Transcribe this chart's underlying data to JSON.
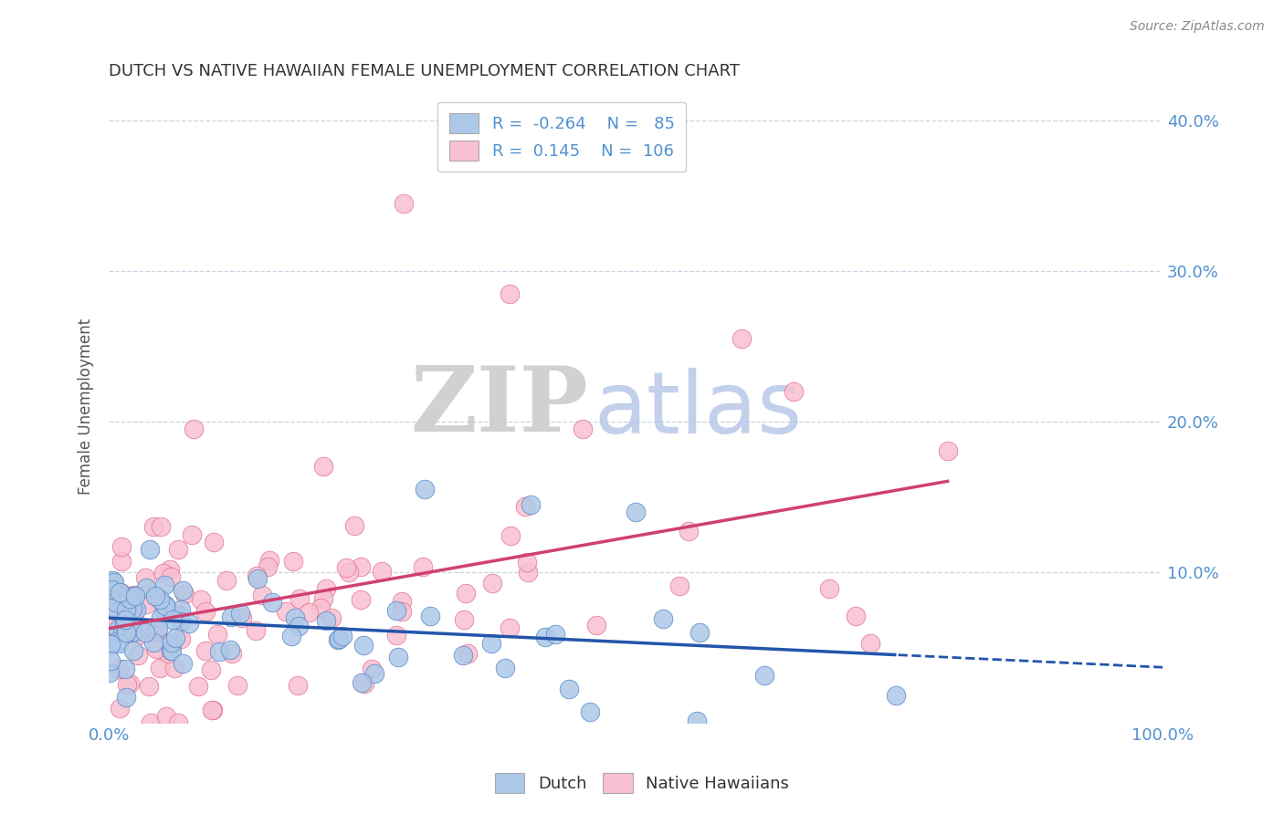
{
  "title": "DUTCH VS NATIVE HAWAIIAN FEMALE UNEMPLOYMENT CORRELATION CHART",
  "source": "Source: ZipAtlas.com",
  "xlabel": "",
  "ylabel": "Female Unemployment",
  "xlim": [
    0,
    1.0
  ],
  "ylim": [
    0,
    0.42
  ],
  "ytick_labels": [
    "",
    "10.0%",
    "20.0%",
    "30.0%",
    "40.0%"
  ],
  "ytick_vals": [
    0.0,
    0.1,
    0.2,
    0.3,
    0.4
  ],
  "dutch_R": -0.264,
  "dutch_N": 85,
  "dutch_color": "#adc8e8",
  "dutch_edge_color": "#5585c5",
  "dutch_line_color": "#2255aa",
  "native_R": 0.145,
  "native_N": 106,
  "native_color": "#f8c0d0",
  "native_edge_color": "#e07090",
  "native_line_color": "#d04070",
  "watermark_zip_color": "#cccccc",
  "watermark_atlas_color": "#b8c8e8",
  "background_color": "#ffffff",
  "grid_color": "#c8d4e4",
  "right_ytick_color": "#5090d0",
  "xtick_color": "#5090d0",
  "title_color": "#333333",
  "source_color": "#888888"
}
